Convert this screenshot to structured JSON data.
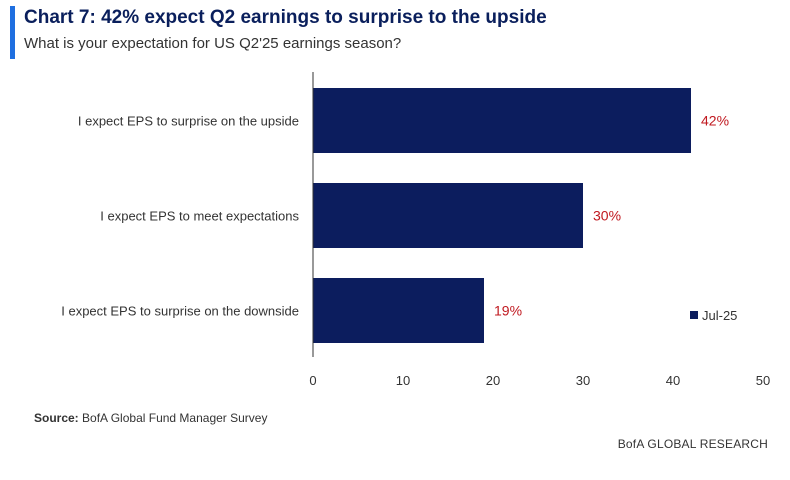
{
  "chart_data": {
    "type": "bar",
    "orientation": "horizontal",
    "title": "Chart 7: 42% expect Q2 earnings to surprise to the upside",
    "subtitle": "What is your expectation for US Q2'25 earnings season?",
    "categories": [
      "I expect EPS to surprise on the upside",
      "I expect EPS to meet expectations",
      "I expect EPS to surprise on the downside"
    ],
    "series": [
      {
        "name": "Jul-25",
        "values": [
          42,
          30,
          19
        ],
        "color": "#0c1d5e"
      }
    ],
    "data_labels": [
      "42%",
      "30%",
      "19%"
    ],
    "data_label_color": "#c0181f",
    "xlim": [
      0,
      50
    ],
    "xticks": [
      0,
      10,
      20,
      30,
      40,
      50
    ],
    "grid": false,
    "legend_position": "bottom-right"
  },
  "source": {
    "label": "Source:",
    "text": "BofA Global Fund Manager Survey"
  },
  "branding": "BofA GLOBAL RESEARCH",
  "colors": {
    "accent": "#1f6fe0",
    "title": "#0a1f5c"
  }
}
